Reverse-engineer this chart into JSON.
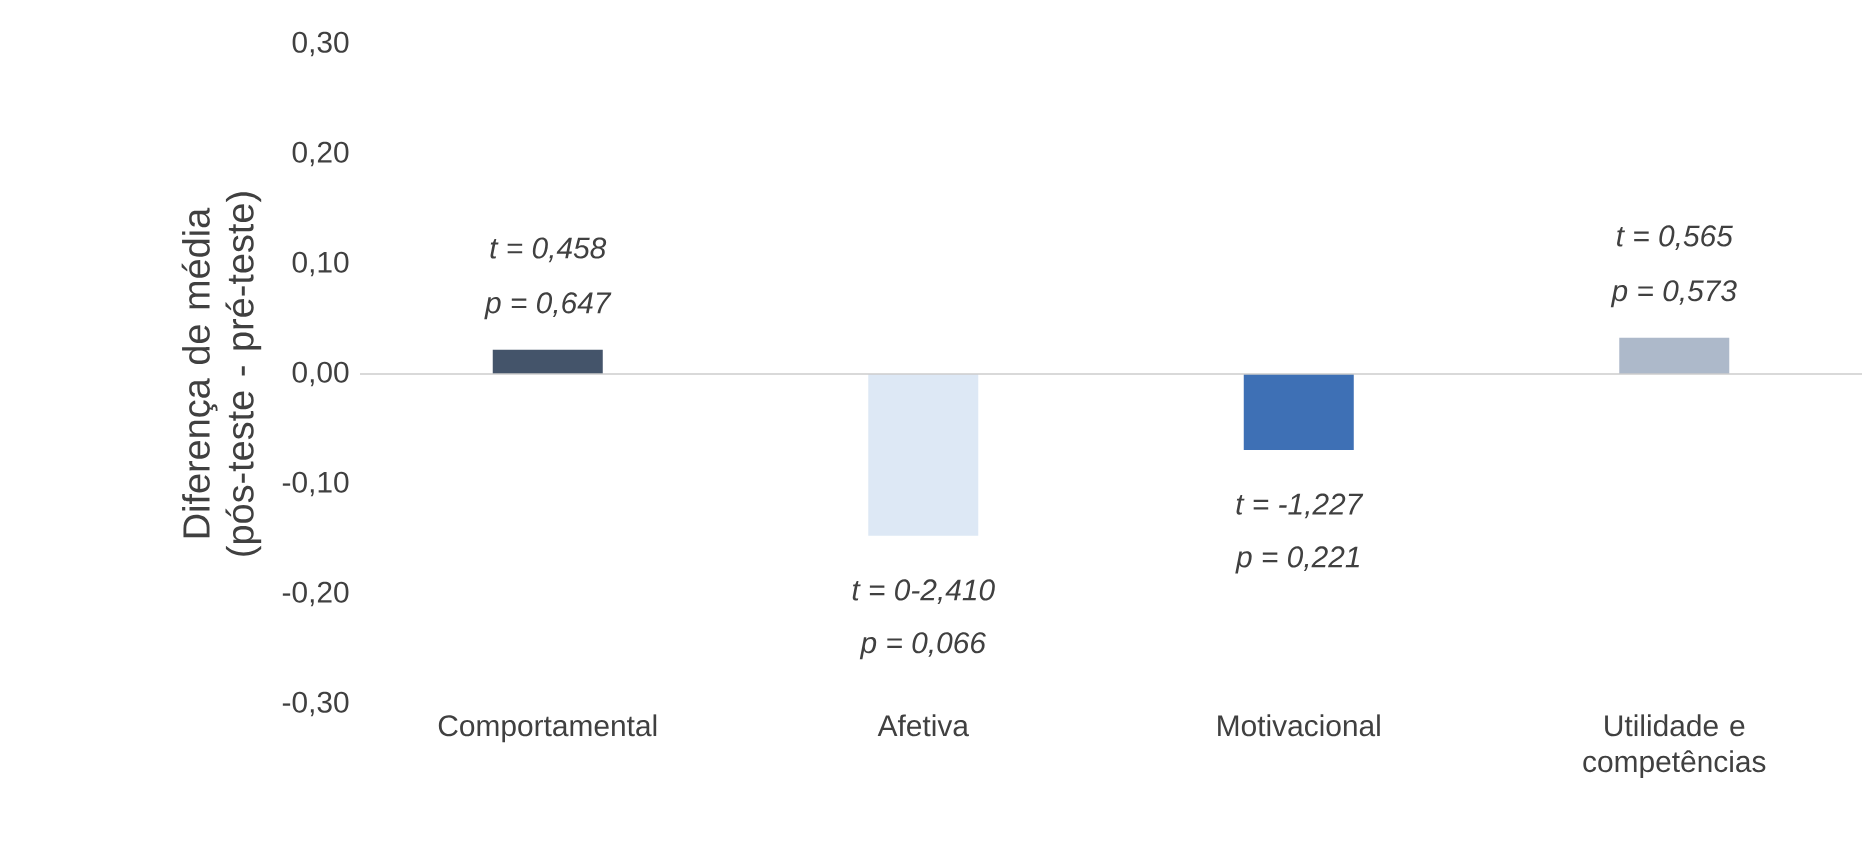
{
  "chart_data": {
    "type": "bar",
    "ylabel": "Diferença de média (pós-teste - pré-teste)",
    "categories": [
      "Comportamental",
      "Afetiva",
      "Motivacional",
      "Utilidade e competências"
    ],
    "values": [
      0.022,
      -0.147,
      -0.069,
      0.033
    ],
    "colors": [
      "#44546a",
      "#dde8f5",
      "#3e70b5",
      "#adb9ca"
    ],
    "ylim": [
      -0.3,
      0.3
    ],
    "yticks": [
      {
        "value": -0.3,
        "label": "-0,30"
      },
      {
        "value": -0.2,
        "label": "-0,20"
      },
      {
        "value": -0.1,
        "label": "-0,10"
      },
      {
        "value": 0,
        "label": "0,00"
      },
      {
        "value": 0.1,
        "label": "0,10"
      },
      {
        "value": 0.2,
        "label": "0,20"
      },
      {
        "value": 0.3,
        "label": "0,30"
      }
    ],
    "annotations": [
      "t = 0,458",
      "p = 0,647",
      "t = 0-2,410",
      "p = 0,066",
      "t = -1,227",
      "p = 0,221",
      "t = 0,565",
      "p = 0,573"
    ]
  }
}
